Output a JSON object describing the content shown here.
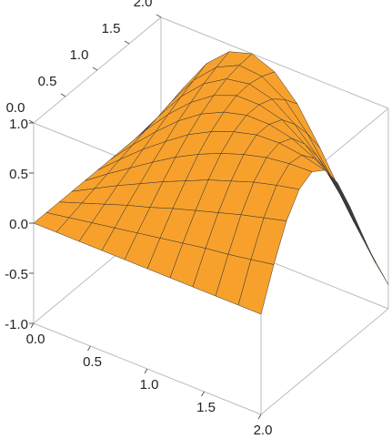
{
  "chart_data": {
    "type": "surface",
    "x": [
      0,
      0.2,
      0.4,
      0.6,
      0.8,
      1.0,
      1.2,
      1.4,
      1.6,
      1.8,
      2.0
    ],
    "y": [
      0,
      0.2,
      0.4,
      0.6,
      0.8,
      1.0,
      1.2,
      1.4,
      1.6,
      1.8,
      2.0
    ],
    "z": [
      [
        0,
        0,
        0,
        0,
        0,
        0,
        0,
        0,
        0,
        0,
        0
      ],
      [
        0,
        0.04,
        0.08,
        0.12,
        0.16,
        0.2,
        0.24,
        0.28,
        0.31,
        0.35,
        0.39
      ],
      [
        0,
        0.08,
        0.16,
        0.24,
        0.31,
        0.39,
        0.46,
        0.53,
        0.6,
        0.66,
        0.72
      ],
      [
        0,
        0.12,
        0.24,
        0.35,
        0.46,
        0.56,
        0.66,
        0.74,
        0.82,
        0.88,
        0.93
      ],
      [
        0,
        0.16,
        0.31,
        0.46,
        0.6,
        0.72,
        0.82,
        0.9,
        0.96,
        0.99,
        1.0
      ],
      [
        0,
        0.2,
        0.39,
        0.56,
        0.72,
        0.84,
        0.93,
        0.99,
        1.0,
        0.97,
        0.91
      ],
      [
        0,
        0.24,
        0.46,
        0.66,
        0.82,
        0.93,
        0.99,
        0.99,
        0.94,
        0.83,
        0.68
      ],
      [
        0,
        0.28,
        0.53,
        0.74,
        0.9,
        0.99,
        0.99,
        0.93,
        0.78,
        0.58,
        0.33
      ],
      [
        0,
        0.31,
        0.6,
        0.82,
        0.96,
        1.0,
        0.94,
        0.78,
        0.55,
        0.26,
        -0.06
      ],
      [
        0,
        0.35,
        0.66,
        0.88,
        0.99,
        0.97,
        0.83,
        0.58,
        0.26,
        -0.1,
        -0.44
      ],
      [
        0,
        0.39,
        0.72,
        0.93,
        1.0,
        0.91,
        0.68,
        0.33,
        -0.06,
        -0.44,
        -0.76
      ]
    ],
    "xlim": [
      0,
      2
    ],
    "ylim": [
      0,
      2
    ],
    "zlim": [
      -1,
      1
    ],
    "xticks": [
      {
        "value": 0,
        "label": "0.0"
      },
      {
        "value": 0.5,
        "label": "0.5"
      },
      {
        "value": 1,
        "label": "1.0"
      },
      {
        "value": 1.5,
        "label": "1.5"
      },
      {
        "value": 2,
        "label": "2.0"
      }
    ],
    "yticks": [
      {
        "value": 0,
        "label": "0.0"
      },
      {
        "value": 0.5,
        "label": "0.5"
      },
      {
        "value": 1,
        "label": "1.0"
      },
      {
        "value": 1.5,
        "label": "1.5"
      },
      {
        "value": 2,
        "label": "2.0"
      }
    ],
    "zticks": [
      {
        "value": -1,
        "label": "-1.0"
      },
      {
        "value": -0.5,
        "label": "-0.5"
      },
      {
        "value": 0,
        "label": "0.0"
      },
      {
        "value": 0.5,
        "label": "0.5"
      },
      {
        "value": 1,
        "label": "1.0"
      }
    ],
    "color": "#f7a12c",
    "back_color": "#3d3d3d"
  }
}
